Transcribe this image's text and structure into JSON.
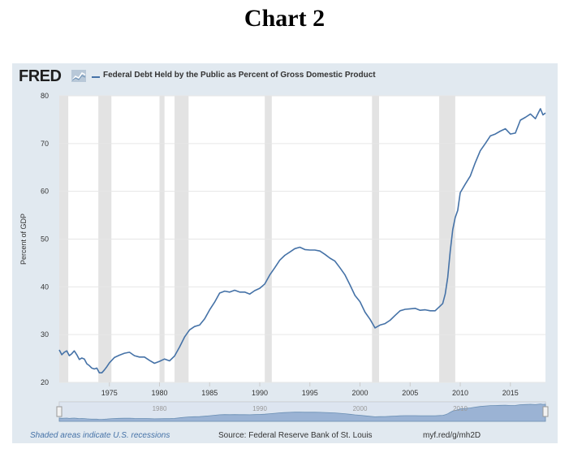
{
  "page_title": "Chart 2",
  "brand": "FRED",
  "footer": {
    "shaded_note": "Shaded areas indicate U.S. recessions",
    "source": "Source: Federal Reserve Bank of St. Louis",
    "url": "myf.red/g/mh2D"
  },
  "colors": {
    "series": "#4572a7",
    "recession": "#e3e3e3",
    "panel": "#e1e9f0",
    "navigator": "#9bb3d4"
  },
  "chart_data": {
    "type": "line",
    "ylabel": "Percent of GDP",
    "xlabel": "",
    "ylim": [
      20,
      80
    ],
    "xlim": [
      1970.0,
      2018.5
    ],
    "yticks": [
      20,
      30,
      40,
      50,
      60,
      70,
      80
    ],
    "xticks": [
      1975,
      1980,
      1985,
      1990,
      1995,
      2000,
      2005,
      2010,
      2015
    ],
    "navigator_labels": [
      "1980",
      "1990",
      "2000",
      "2010"
    ],
    "grid": true,
    "legend": "top-left",
    "recessions": [
      [
        1969.9,
        1970.9
      ],
      [
        1973.9,
        1975.2
      ],
      [
        1980.0,
        1980.5
      ],
      [
        1981.5,
        1982.9
      ],
      [
        1990.5,
        1991.2
      ],
      [
        2001.2,
        2001.9
      ],
      [
        2007.9,
        2009.5
      ]
    ],
    "series": [
      {
        "name": "Federal Debt Held by the Public as Percent of Gross Domestic Product",
        "x": [
          1970.0,
          1970.25,
          1970.5,
          1970.75,
          1971.0,
          1971.25,
          1971.5,
          1971.75,
          1972.0,
          1972.25,
          1972.5,
          1972.75,
          1973.0,
          1973.25,
          1973.5,
          1973.75,
          1974.0,
          1974.25,
          1974.5,
          1974.75,
          1975.0,
          1975.5,
          1976.0,
          1976.5,
          1977.0,
          1977.5,
          1978.0,
          1978.5,
          1979.0,
          1979.5,
          1980.0,
          1980.5,
          1981.0,
          1981.5,
          1982.0,
          1982.5,
          1983.0,
          1983.5,
          1984.0,
          1984.5,
          1985.0,
          1985.5,
          1986.0,
          1986.5,
          1987.0,
          1987.5,
          1988.0,
          1988.5,
          1989.0,
          1989.5,
          1990.0,
          1990.5,
          1991.0,
          1991.5,
          1992.0,
          1992.5,
          1993.0,
          1993.5,
          1994.0,
          1994.5,
          1995.0,
          1995.5,
          1996.0,
          1996.5,
          1997.0,
          1997.5,
          1998.0,
          1998.5,
          1999.0,
          1999.5,
          2000.0,
          2000.5,
          2001.0,
          2001.5,
          2002.0,
          2002.5,
          2003.0,
          2003.5,
          2004.0,
          2004.5,
          2005.0,
          2005.5,
          2006.0,
          2006.5,
          2007.0,
          2007.5,
          2008.0,
          2008.25,
          2008.5,
          2008.75,
          2009.0,
          2009.25,
          2009.5,
          2009.75,
          2010.0,
          2010.5,
          2011.0,
          2011.5,
          2012.0,
          2012.5,
          2013.0,
          2013.5,
          2014.0,
          2014.5,
          2015.0,
          2015.5,
          2016.0,
          2016.5,
          2017.0,
          2017.5,
          2018.0,
          2018.25,
          2018.5
        ],
        "values": [
          26.8,
          25.8,
          26.3,
          26.6,
          25.6,
          26.0,
          26.6,
          25.8,
          24.8,
          25.1,
          24.9,
          23.9,
          23.5,
          23.0,
          22.8,
          23.0,
          22.0,
          22.0,
          22.6,
          23.3,
          24.1,
          25.2,
          25.7,
          26.1,
          26.3,
          25.6,
          25.3,
          25.3,
          24.6,
          24.0,
          24.4,
          24.9,
          24.5,
          25.5,
          27.4,
          29.5,
          31.0,
          31.7,
          32.0,
          33.3,
          35.2,
          36.8,
          38.7,
          39.1,
          38.9,
          39.3,
          38.9,
          38.9,
          38.5,
          39.2,
          39.7,
          40.6,
          42.5,
          44.0,
          45.6,
          46.6,
          47.3,
          48.0,
          48.3,
          47.8,
          47.7,
          47.7,
          47.5,
          46.8,
          46.0,
          45.4,
          44.0,
          42.5,
          40.4,
          38.2,
          36.9,
          34.7,
          33.2,
          31.4,
          32.0,
          32.3,
          33.0,
          34.0,
          35.0,
          35.3,
          35.4,
          35.5,
          35.1,
          35.2,
          35.0,
          35.0,
          36.0,
          36.5,
          38.5,
          42.0,
          47.5,
          52.0,
          54.5,
          56.0,
          59.7,
          61.5,
          63.2,
          66.0,
          68.5,
          70.0,
          71.6,
          72.0,
          72.6,
          73.1,
          72.0,
          72.2,
          74.9,
          75.5,
          76.2,
          75.2,
          77.3,
          76.0,
          76.4
        ]
      }
    ]
  }
}
